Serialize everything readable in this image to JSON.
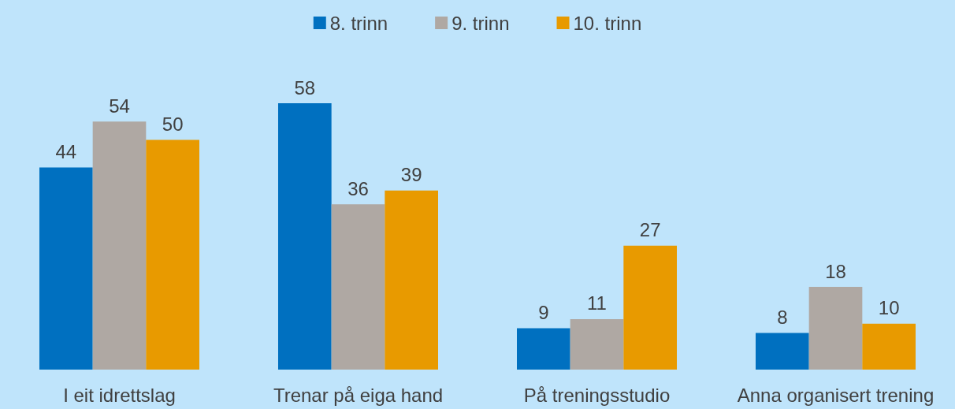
{
  "chart_data": {
    "type": "bar",
    "categories": [
      "I eit idrettslag",
      "Trenar på eiga hand",
      "På treningsstudio",
      "Anna organisert trening"
    ],
    "series": [
      {
        "name": "8. trinn",
        "color": "#0070c0",
        "values": [
          44,
          58,
          9,
          8
        ]
      },
      {
        "name": "9. trinn",
        "color": "#afa8a3",
        "values": [
          54,
          36,
          11,
          18
        ]
      },
      {
        "name": "10. trinn",
        "color": "#e89a00",
        "values": [
          50,
          39,
          27,
          10
        ]
      }
    ],
    "data_labels": true,
    "legend": "top",
    "grid": false
  }
}
